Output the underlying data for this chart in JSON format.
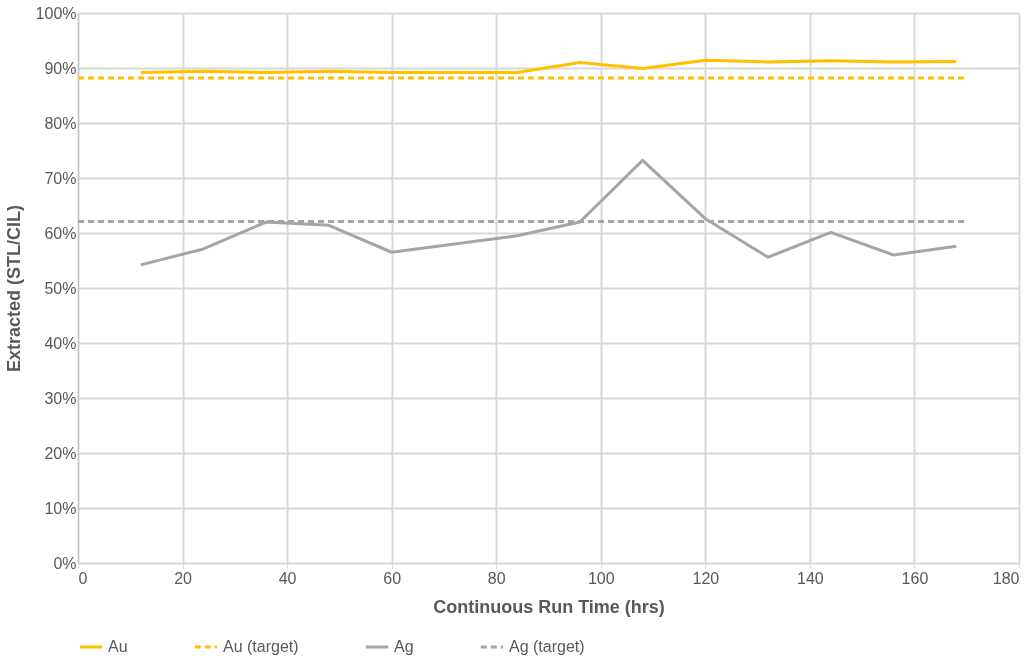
{
  "chart_data": {
    "type": "line",
    "xlabel": "Continuous Run Time (hrs)",
    "ylabel": "Extracted (STL/CIL)",
    "xlim": [
      0,
      180
    ],
    "xticks": [
      0,
      20,
      40,
      60,
      80,
      100,
      120,
      140,
      160,
      180
    ],
    "ylim": [
      0,
      100
    ],
    "yticks": [
      {
        "value": 0,
        "label": "0%"
      },
      {
        "value": 10,
        "label": "10%"
      },
      {
        "value": 20,
        "label": "20%"
      },
      {
        "value": 30,
        "label": "30%"
      },
      {
        "value": 40,
        "label": "40%"
      },
      {
        "value": 50,
        "label": "50%"
      },
      {
        "value": 60,
        "label": "60%"
      },
      {
        "value": 70,
        "label": "70%"
      },
      {
        "value": 80,
        "label": "80%"
      },
      {
        "value": 90,
        "label": "90%"
      },
      {
        "value": 100,
        "label": "100%"
      }
    ],
    "grid": true,
    "legend": "bottom",
    "marker": "none",
    "series": [
      {
        "name": "Au",
        "color": "#ffc000",
        "line_style": "solid",
        "x": [
          12,
          24,
          36,
          48,
          60,
          72,
          84,
          96,
          108,
          120,
          132,
          144,
          156,
          168
        ],
        "values": [
          89.2,
          89.4,
          89.2,
          89.4,
          89.2,
          89.2,
          89.2,
          91.0,
          89.9,
          91.4,
          91.1,
          91.3,
          91.1,
          91.2
        ]
      },
      {
        "name": "Au (target)",
        "color": "#ffc000",
        "line_style": "dashed",
        "x": [
          0,
          170
        ],
        "values": [
          88.2,
          88.2
        ]
      },
      {
        "name": "Ag",
        "color": "#a5a5a5",
        "line_style": "solid",
        "x": [
          12,
          24,
          36,
          48,
          60,
          72,
          84,
          96,
          108,
          120,
          132,
          144,
          156,
          168
        ],
        "values": [
          54.2,
          57.1,
          62.0,
          61.4,
          56.5,
          58.0,
          59.5,
          62.0,
          73.2,
          62.6,
          55.6,
          60.1,
          56.0,
          57.6
        ]
      },
      {
        "name": "Ag (target)",
        "color": "#a5a5a5",
        "line_style": "dashed",
        "x": [
          0,
          170
        ],
        "values": [
          62.1,
          62.1
        ]
      }
    ]
  }
}
